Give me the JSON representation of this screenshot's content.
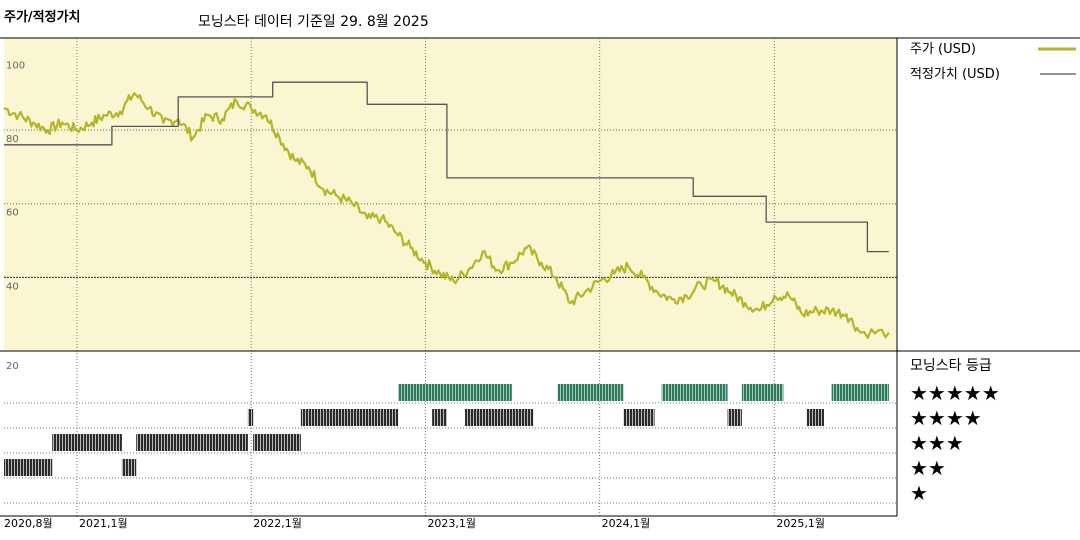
{
  "title": "주가/적정가치",
  "subtitle": "모닝스타 데이터 기준일 29. 8월 2025",
  "chart_data": {
    "type": "line",
    "ylim": [
      20,
      100
    ],
    "yticks": [
      "100",
      "80",
      "60",
      "40",
      "20"
    ],
    "xticks": [
      "2020,8월",
      "2021,1월",
      "2022,1월",
      "2023,1월",
      "2024,1월",
      "2025,1월"
    ],
    "legend_placement": "right",
    "series": [
      {
        "name": "주가 (USD)",
        "color": "#b5b52a",
        "points": [
          [
            "2020-08-01",
            86
          ],
          [
            "2020-09-01",
            84
          ],
          [
            "2020-10-01",
            82
          ],
          [
            "2020-11-01",
            80
          ],
          [
            "2020-12-01",
            82
          ],
          [
            "2021-01-01",
            80
          ],
          [
            "2021-02-01",
            82
          ],
          [
            "2021-03-01",
            84
          ],
          [
            "2021-04-01",
            85
          ],
          [
            "2021-05-01",
            90
          ],
          [
            "2021-06-01",
            86
          ],
          [
            "2021-07-01",
            82
          ],
          [
            "2021-08-01",
            83
          ],
          [
            "2021-09-01",
            78
          ],
          [
            "2021-10-01",
            84
          ],
          [
            "2021-11-01",
            83
          ],
          [
            "2021-12-01",
            88
          ],
          [
            "2022-01-01",
            86
          ],
          [
            "2022-02-01",
            84
          ],
          [
            "2022-03-01",
            78
          ],
          [
            "2022-04-01",
            72
          ],
          [
            "2022-05-01",
            70
          ],
          [
            "2022-06-01",
            64
          ],
          [
            "2022-07-01",
            62
          ],
          [
            "2022-08-01",
            60
          ],
          [
            "2022-09-01",
            56
          ],
          [
            "2022-10-01",
            56
          ],
          [
            "2022-11-01",
            52
          ],
          [
            "2022-12-01",
            48
          ],
          [
            "2023-01-01",
            44
          ],
          [
            "2023-02-01",
            41
          ],
          [
            "2023-03-01",
            39
          ],
          [
            "2023-04-01",
            42
          ],
          [
            "2023-05-01",
            47
          ],
          [
            "2023-06-01",
            42
          ],
          [
            "2023-07-01",
            44
          ],
          [
            "2023-08-01",
            48
          ],
          [
            "2023-09-01",
            44
          ],
          [
            "2023-10-01",
            40
          ],
          [
            "2023-11-01",
            33
          ],
          [
            "2023-12-01",
            36
          ],
          [
            "2024-01-01",
            39
          ],
          [
            "2024-02-01",
            41
          ],
          [
            "2024-03-01",
            43
          ],
          [
            "2024-04-01",
            40
          ],
          [
            "2024-05-01",
            36
          ],
          [
            "2024-06-01",
            34
          ],
          [
            "2024-07-01",
            35
          ],
          [
            "2024-08-01",
            38
          ],
          [
            "2024-09-01",
            39
          ],
          [
            "2024-10-01",
            36
          ],
          [
            "2024-11-01",
            33
          ],
          [
            "2024-12-01",
            31
          ],
          [
            "2025-01-01",
            35
          ],
          [
            "2025-02-01",
            35
          ],
          [
            "2025-03-01",
            30
          ],
          [
            "2025-04-01",
            31
          ],
          [
            "2025-05-01",
            31
          ],
          [
            "2025-06-01",
            30
          ],
          [
            "2025-07-01",
            25
          ],
          [
            "2025-08-29",
            25
          ]
        ]
      },
      {
        "name": "적정가치 (USD)",
        "color": "#555555",
        "step": true,
        "points": [
          [
            "2020-08-01",
            76
          ],
          [
            "2021-03-15",
            76
          ],
          [
            "2021-03-15",
            81
          ],
          [
            "2021-08-01",
            81
          ],
          [
            "2021-08-01",
            89
          ],
          [
            "2022-02-15",
            89
          ],
          [
            "2022-02-15",
            93
          ],
          [
            "2022-09-01",
            93
          ],
          [
            "2022-09-01",
            87
          ],
          [
            "2023-02-15",
            87
          ],
          [
            "2023-02-15",
            67
          ],
          [
            "2024-07-15",
            67
          ],
          [
            "2024-07-15",
            62
          ],
          [
            "2024-12-15",
            62
          ],
          [
            "2024-12-15",
            55
          ],
          [
            "2025-07-15",
            55
          ],
          [
            "2025-07-15",
            47
          ],
          [
            "2025-08-29",
            47
          ]
        ]
      }
    ],
    "rating_title": "모닝스타 등급",
    "rating_labels": [
      "★★★★★",
      "★★★★",
      "★★★",
      "★★",
      "★"
    ],
    "rating_periods": [
      [
        "2020-08-01",
        "2020-11-10",
        2
      ],
      [
        "2020-11-10",
        "2021-04-05",
        3
      ],
      [
        "2021-04-05",
        "2021-05-05",
        2
      ],
      [
        "2021-05-05",
        "2021-12-25",
        3
      ],
      [
        "2021-12-25",
        "2022-01-05",
        4
      ],
      [
        "2022-01-05",
        "2022-04-15",
        3
      ],
      [
        "2022-04-15",
        "2022-11-05",
        4
      ],
      [
        "2022-11-05",
        "2023-07-01",
        5
      ],
      [
        "2023-01-15",
        "2023-02-15",
        4
      ],
      [
        "2023-02-15",
        "2023-03-25",
        5
      ],
      [
        "2023-03-25",
        "2023-08-15",
        4
      ],
      [
        "2023-10-05",
        "2024-02-20",
        5
      ],
      [
        "2024-02-20",
        "2024-04-25",
        4
      ],
      [
        "2024-05-10",
        "2024-09-25",
        5
      ],
      [
        "2024-09-25",
        "2024-10-25",
        4
      ],
      [
        "2024-10-25",
        "2025-01-20",
        5
      ],
      [
        "2025-03-10",
        "2025-04-15",
        4
      ],
      [
        "2025-05-01",
        "2025-08-29",
        5
      ]
    ]
  }
}
